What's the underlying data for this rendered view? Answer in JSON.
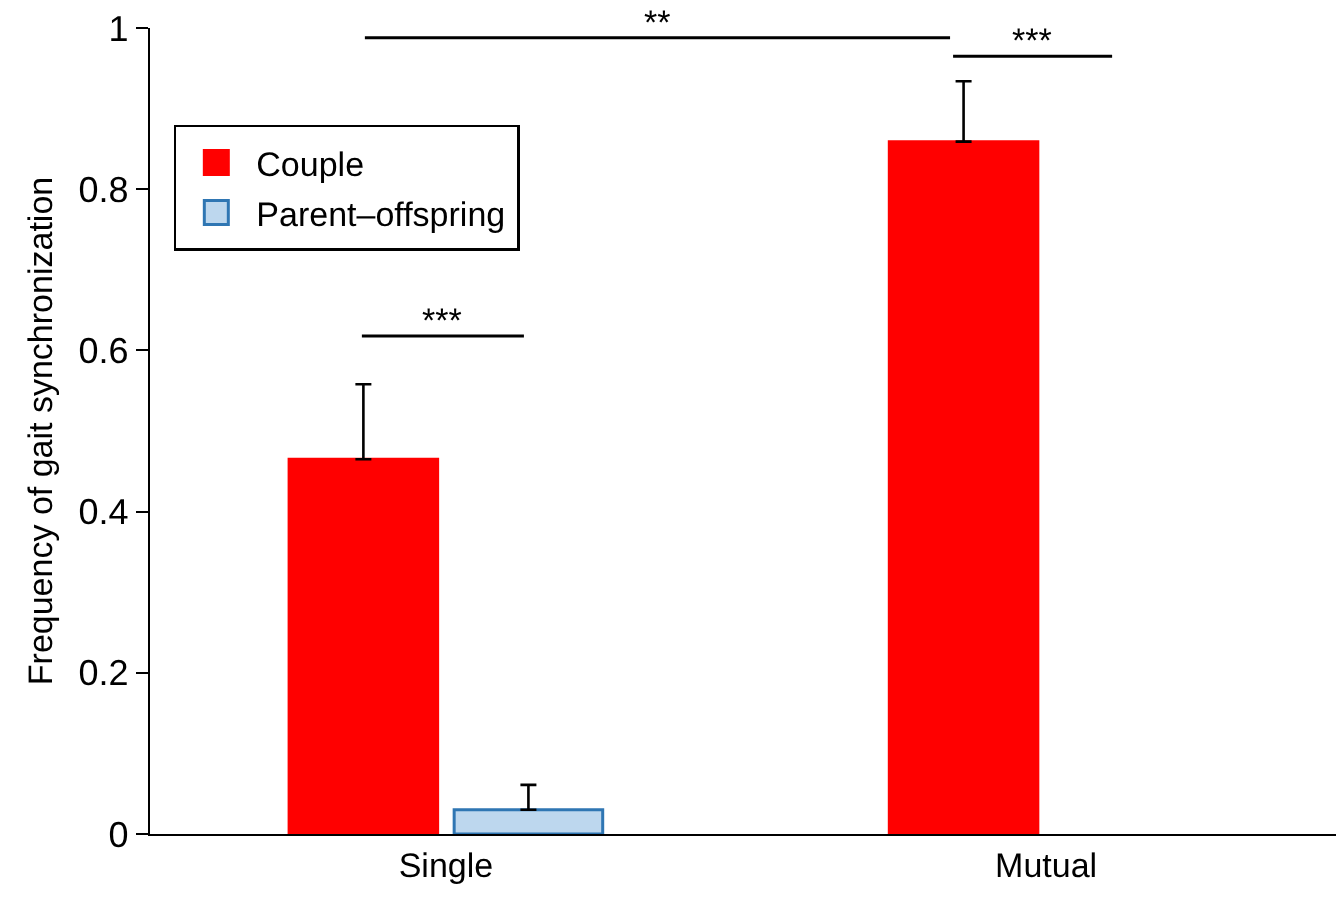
{
  "chart_data": {
    "type": "bar",
    "ylabel": "Frequency of gait synchronization",
    "categories": [
      "Single",
      "Mutual"
    ],
    "series": [
      {
        "name": "Couple",
        "color": "#ff0000",
        "values": [
          0.465,
          0.859
        ],
        "errors": [
          [
            0.465,
            0.558
          ],
          [
            0.859,
            0.934
          ]
        ]
      },
      {
        "name": "Parent–offspring",
        "color": "#bdd7ee",
        "values": [
          0.03,
          null
        ],
        "errors": [
          [
            0.03,
            0.061
          ],
          null
        ]
      }
    ],
    "ylim": [
      0,
      1
    ],
    "yticks": [
      0,
      0.2,
      0.4,
      0.6,
      0.8,
      1
    ],
    "legend": "top left",
    "grid": false,
    "annotations": [
      "***",
      "**",
      "***"
    ]
  }
}
